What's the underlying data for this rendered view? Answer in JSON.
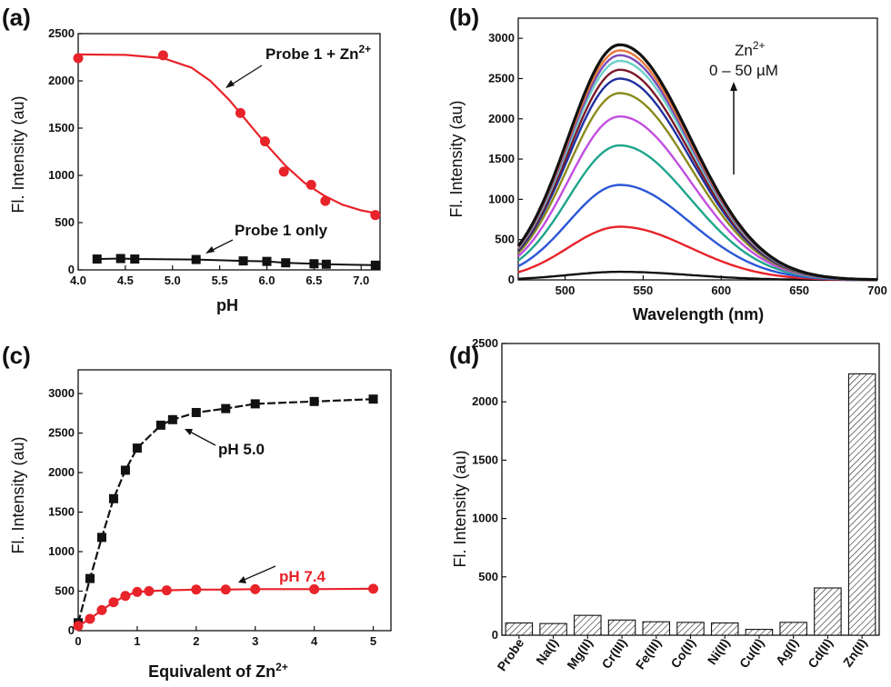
{
  "chart_data": [
    {
      "panel": "(a)",
      "type": "scatter",
      "xlabel": "pH",
      "ylabel": "Fl. Intensity (au)",
      "xlim": [
        4.0,
        7.2
      ],
      "ylim": [
        0,
        2500
      ],
      "xticks": [
        "4.0",
        "4.5",
        "5.0",
        "5.5",
        "6.0",
        "6.5",
        "7.0"
      ],
      "yticks": [
        "0",
        "500",
        "1000",
        "1500",
        "2000",
        "2500"
      ],
      "series": [
        {
          "name": "Probe 1 + Zn2+",
          "color": "#e8232a",
          "marker": "circle",
          "x": [
            4.0,
            4.9,
            5.72,
            5.98,
            6.18,
            6.47,
            6.62,
            7.15
          ],
          "y": [
            2240,
            2270,
            1660,
            1360,
            1040,
            900,
            730,
            580
          ],
          "fit_x": [
            4.0,
            4.5,
            4.9,
            5.2,
            5.4,
            5.6,
            5.8,
            6.0,
            6.2,
            6.4,
            6.6,
            6.8,
            7.0,
            7.15
          ],
          "fit_y": [
            2280,
            2275,
            2240,
            2140,
            2000,
            1800,
            1560,
            1320,
            1100,
            920,
            790,
            690,
            630,
            600
          ]
        },
        {
          "name": "Probe 1 only",
          "color": "#111111",
          "marker": "square",
          "x": [
            4.2,
            4.45,
            4.6,
            5.25,
            5.75,
            6.0,
            6.2,
            6.5,
            6.63,
            7.15
          ],
          "y": [
            115,
            120,
            115,
            110,
            95,
            90,
            75,
            65,
            60,
            50
          ]
        }
      ],
      "annotations": [
        {
          "text": "Probe 1 + Zn",
          "sup": "2+"
        },
        {
          "text": "Probe 1 only"
        }
      ]
    },
    {
      "panel": "(b)",
      "type": "line",
      "xlabel": "Wavelength (nm)",
      "ylabel": "Fl. Intensity (au)",
      "xlim": [
        470,
        700
      ],
      "ylim": [
        0,
        3250
      ],
      "xticks": [
        "500",
        "550",
        "600",
        "650",
        "700"
      ],
      "yticks": [
        "0",
        "500",
        "1000",
        "1500",
        "2000",
        "2500",
        "3000"
      ],
      "peak_nm": 535,
      "series": [
        {
          "color": "#111111",
          "peak": 100
        },
        {
          "color": "#e8232a",
          "peak": 660
        },
        {
          "color": "#2b57d6",
          "peak": 1180
        },
        {
          "color": "#1fa58a",
          "peak": 1670
        },
        {
          "color": "#c14fe0",
          "peak": 2030
        },
        {
          "color": "#8a8a1c",
          "peak": 2320
        },
        {
          "color": "#2030a0",
          "peak": 2500
        },
        {
          "color": "#7a1a2a",
          "peak": 2610
        },
        {
          "color": "#6bd0c8",
          "peak": 2720
        },
        {
          "color": "#7a4ab8",
          "peak": 2790
        },
        {
          "color": "#e87a3a",
          "peak": 2850
        },
        {
          "color": "#111111",
          "peak": 2920
        }
      ],
      "annotation": {
        "line1": "Zn",
        "sup": "2+",
        "line2": "0 – 50 µM"
      }
    },
    {
      "panel": "(c)",
      "type": "line",
      "xlabel": "Equivalent of Zn",
      "xlabel_sup": "2+",
      "ylabel": "Fl. Intensity (au)",
      "xlim": [
        0,
        5.3
      ],
      "ylim": [
        0,
        3300
      ],
      "xticks": [
        "0",
        "1",
        "2",
        "3",
        "4",
        "5"
      ],
      "yticks": [
        "0",
        "500",
        "1000",
        "1500",
        "2000",
        "2500",
        "3000"
      ],
      "series": [
        {
          "name": "pH 5.0",
          "color": "#111111",
          "marker": "square",
          "x": [
            0,
            0.2,
            0.4,
            0.6,
            0.8,
            1.0,
            1.4,
            1.6,
            2.0,
            2.5,
            3.0,
            4.0,
            5.0
          ],
          "y": [
            100,
            660,
            1180,
            1670,
            2030,
            2310,
            2600,
            2670,
            2760,
            2810,
            2870,
            2900,
            2930
          ]
        },
        {
          "name": "pH 7.4",
          "color": "#e8232a",
          "marker": "circle",
          "x": [
            0,
            0.2,
            0.4,
            0.6,
            0.8,
            1.0,
            1.2,
            1.5,
            2.0,
            2.5,
            3.0,
            4.0,
            5.0
          ],
          "y": [
            60,
            150,
            260,
            360,
            440,
            490,
            500,
            510,
            520,
            520,
            525,
            525,
            530
          ]
        }
      ],
      "annotations": [
        {
          "text": "pH 5.0"
        },
        {
          "text": "pH 7.4"
        }
      ]
    },
    {
      "panel": "(d)",
      "type": "bar",
      "ylabel": "Fl. Intensity (au)",
      "ylim": [
        0,
        2500
      ],
      "yticks": [
        "0",
        "500",
        "1000",
        "1500",
        "2000",
        "2500"
      ],
      "categories": [
        "Probe",
        "Na(I)",
        "Mg(II)",
        "Cr(III)",
        "Fe(III)",
        "Co(II)",
        "Ni(II)",
        "Cu(II)",
        "Ag(I)",
        "Cd(II)",
        "Zn(II)"
      ],
      "values": [
        105,
        100,
        170,
        130,
        115,
        110,
        105,
        50,
        110,
        405,
        2240
      ],
      "bar_fill": "hatched"
    }
  ]
}
